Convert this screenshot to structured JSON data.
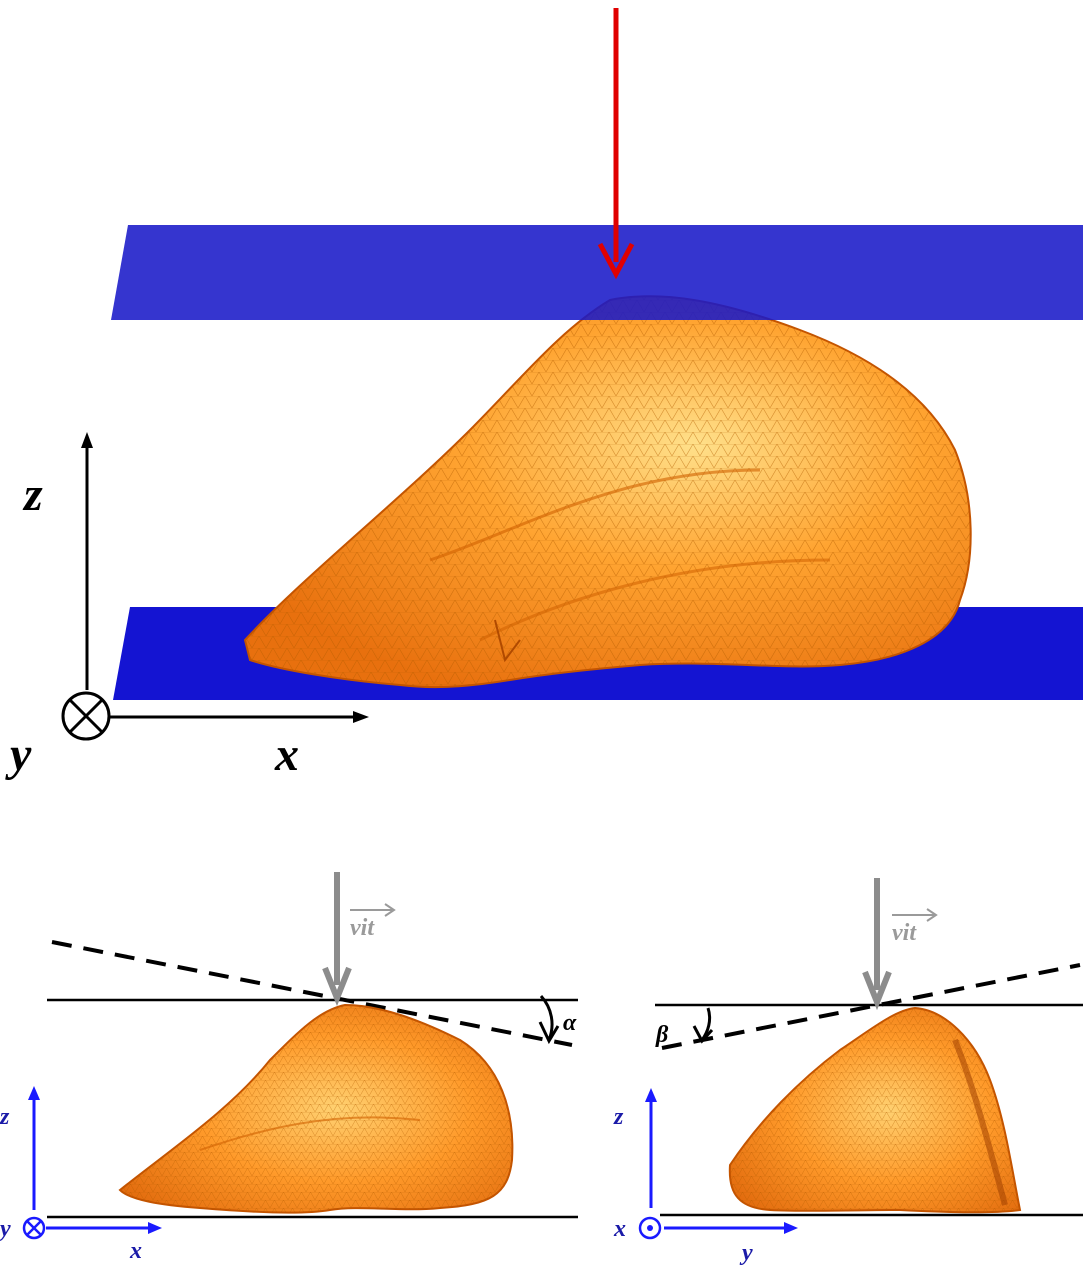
{
  "colors": {
    "plate": "#1f1fd6",
    "plate_translucent": "rgba(25,25,200,0.88)",
    "load_arrow": "#e00000",
    "velocity_arrow": "#8c8c8c",
    "axis_small": "#1a1aff",
    "organ_fill": "#ff8a1c",
    "organ_highlight": "#ffd27a",
    "organ_edge": "#c85a00"
  },
  "top_view": {
    "axes": {
      "z": "z",
      "y": "y",
      "x": "x"
    },
    "y_axis_symbol": "into-page (⊗)"
  },
  "bottom_left": {
    "velocity_label": "vit",
    "angle_label": "α",
    "axes": {
      "z": "z",
      "y": "y",
      "x": "x"
    }
  },
  "bottom_right": {
    "velocity_label": "vit",
    "angle_label": "β",
    "axes": {
      "z": "z",
      "x": "x",
      "y": "y"
    }
  }
}
